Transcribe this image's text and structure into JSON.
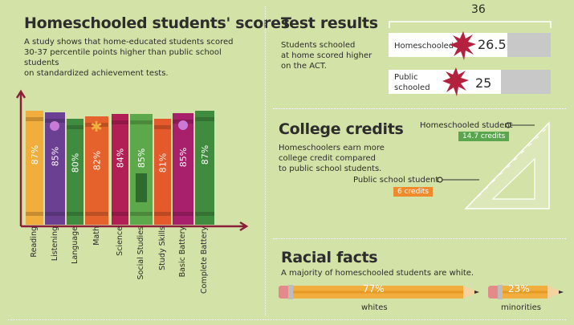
{
  "scores": {
    "title": "Homeschooled students' scores",
    "description_line1": "A study shows that home-educated students scored",
    "description_line2": "30-37 percentile points higher than public school students",
    "description_line3": "on standardized achievement tests.",
    "books": [
      {
        "category": "Reading",
        "value": "87%",
        "color": "#f2ae3c"
      },
      {
        "category": "Listening",
        "value": "85%",
        "color": "#6b3f92"
      },
      {
        "category": "Language",
        "value": "80%",
        "color": "#3f8c3f"
      },
      {
        "category": "Math",
        "value": "82%",
        "color": "#e6622d"
      },
      {
        "category": "Science",
        "value": "84%",
        "color": "#b21f57"
      },
      {
        "category": "Social Studies",
        "value": "85%",
        "color": "#5da84a"
      },
      {
        "category": "Study Skills",
        "value": "81%",
        "color": "#e45a2a"
      },
      {
        "category": "Basic Battery",
        "value": "85%",
        "color": "#a8206b"
      },
      {
        "category": "Complete Battery",
        "value": "87%",
        "color": "#3f8c3f"
      }
    ]
  },
  "test_results": {
    "title": "Test results",
    "max_value": "36",
    "description_line1": "Students schooled",
    "description_line2": "at home scored higher",
    "description_line3": "on the ACT.",
    "rows": [
      {
        "label": "Homeschooled",
        "value": "26.5",
        "score": 26.5
      },
      {
        "label_line1": "Public",
        "label_line2": "schooled",
        "value": "25",
        "score": 25
      }
    ]
  },
  "college": {
    "title": "College credits",
    "description_line1": "Homeschoolers earn more",
    "description_line2": "college credit compared",
    "description_line3": "to public school students.",
    "home_label": "Homeschooled student",
    "home_value": "14.7 credits",
    "public_label": "Public school student",
    "public_value": "6 credits"
  },
  "racial": {
    "title": "Racial facts",
    "description": "A majority of homeschooled students are white.",
    "whites_value": "77%",
    "whites_label": "whites",
    "minorities_value": "23%",
    "minorities_label": "minorities"
  },
  "colors": {
    "background": "#d3e2a6",
    "green_tag": "#5aa64e",
    "orange_tag": "#ef8b2c",
    "splat": "#b3213f",
    "pencil": "#f2ae3c"
  }
}
